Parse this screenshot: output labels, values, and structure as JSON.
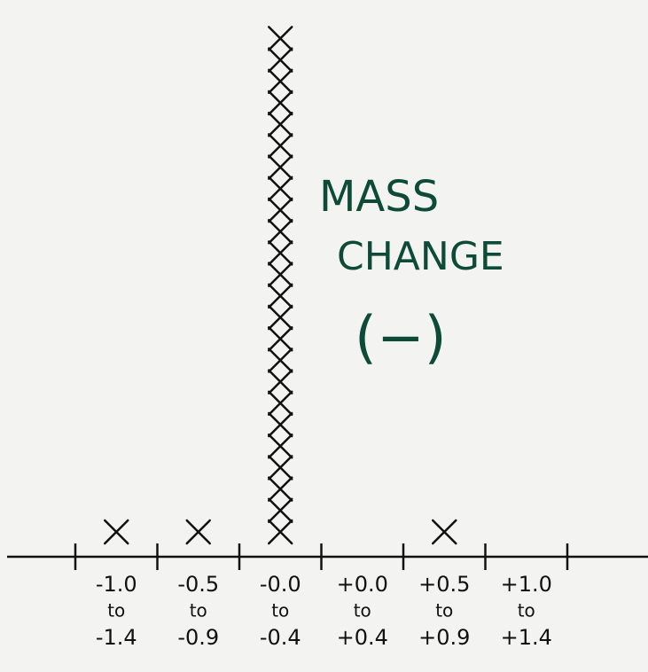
{
  "chart_data": {
    "type": "dotplot",
    "categories": [
      [
        "-1.0",
        "to",
        "-1.4"
      ],
      [
        "-0.5",
        "to",
        "-0.9"
      ],
      [
        "-0.0",
        "to",
        "-0.4"
      ],
      [
        "+0.0",
        "to",
        "+0.4"
      ],
      [
        "+0.5",
        "to",
        "+0.9"
      ],
      [
        "+1.0",
        "to",
        "+1.4"
      ]
    ],
    "values": [
      1,
      1,
      24,
      0,
      1,
      0
    ],
    "color": "#111111",
    "annotation": [
      "MASS",
      "CHANGE",
      "(−)"
    ],
    "annotation_color": "#0d4a38"
  }
}
